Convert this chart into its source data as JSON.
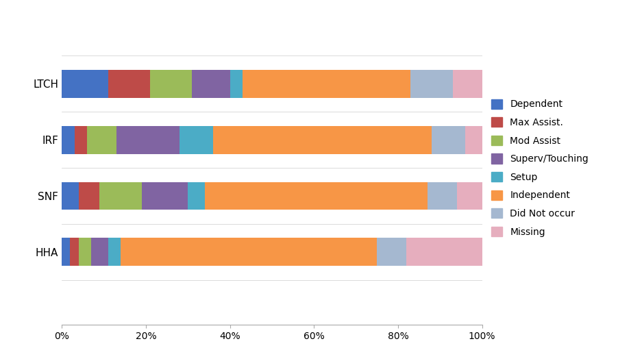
{
  "categories": [
    "LTCH",
    "IRF",
    "SNF",
    "HHA"
  ],
  "series": {
    "Dependent": [
      11,
      3,
      4,
      2
    ],
    "Max Assist.": [
      10,
      3,
      5,
      2
    ],
    "Mod Assist": [
      10,
      7,
      10,
      3
    ],
    "Superv/Touching": [
      9,
      15,
      11,
      4
    ],
    "Setup": [
      3,
      8,
      4,
      3
    ],
    "Independent": [
      40,
      52,
      53,
      61
    ],
    "Did Not occur": [
      10,
      8,
      7,
      7
    ],
    "Missing": [
      7,
      4,
      6,
      18
    ]
  },
  "bar_colors": {
    "Dependent": "#4472C4",
    "Max Assist.": "#BE4B48",
    "Mod Assist": "#9BBB59",
    "Superv/Touching": "#8064A2",
    "Setup": "#4BACC6",
    "Independent": "#F79646",
    "Did Not occur": "#A5B8D0",
    "Missing": "#E6AEBE"
  },
  "legend_order": [
    "Dependent",
    "Max Assist.",
    "Mod Assist",
    "Superv/Touching",
    "Setup",
    "Independent",
    "Did Not occur",
    "Missing"
  ],
  "background_color": "#FFFFFF",
  "plot_area_color": "#F2F2F2",
  "figsize": [
    9.02,
    5.27
  ],
  "dpi": 100,
  "bar_height": 0.5,
  "grid_color": "#FFFFFF",
  "spine_color": "#AAAAAA",
  "tick_fontsize": 10,
  "ylabel_fontsize": 11
}
